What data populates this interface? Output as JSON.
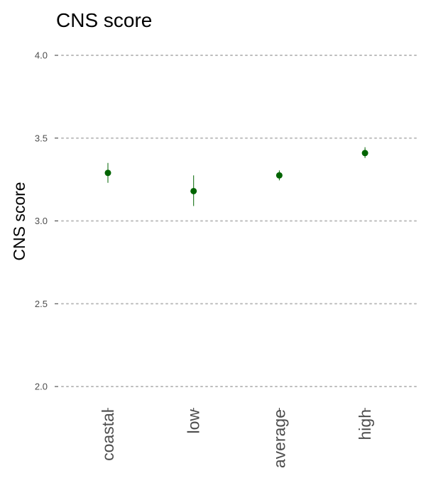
{
  "chart_data": {
    "type": "scatter",
    "title": "CNS score",
    "ylabel": "CNS score",
    "xlabel": "",
    "categories": [
      "coastal",
      "low",
      "average",
      "high"
    ],
    "series": [
      {
        "values": [
          3.29,
          3.18,
          3.275,
          3.41
        ],
        "lower": [
          3.23,
          3.09,
          3.245,
          3.38
        ],
        "upper": [
          3.35,
          3.275,
          3.305,
          3.445
        ]
      }
    ],
    "ylim": [
      2.0,
      4.0
    ],
    "yticks": [
      2.0,
      2.5,
      3.0,
      3.5,
      4.0
    ],
    "ytick_labels": [
      "2.0",
      "2.5",
      "3.0",
      "3.5",
      "4.0"
    ],
    "grid": "horizontal-dotted",
    "legend": "none",
    "colors": {
      "point": "#006400",
      "grid": "#bdbdbd",
      "tick_text": "#4d4d4d"
    }
  }
}
